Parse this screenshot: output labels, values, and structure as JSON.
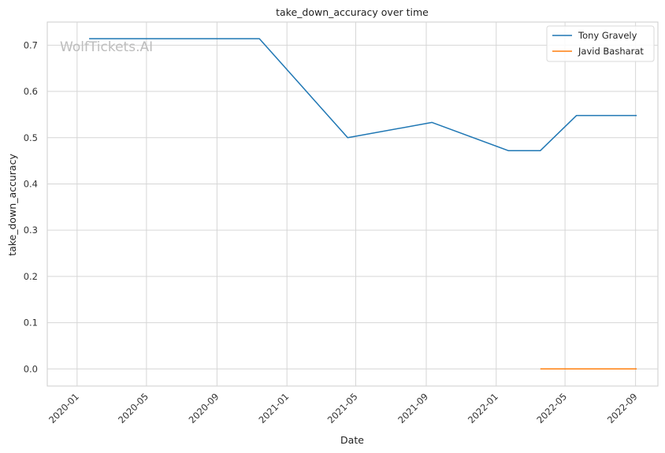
{
  "chart_data": {
    "type": "line",
    "title": "take_down_accuracy over time",
    "xlabel": "Date",
    "ylabel": "take_down_accuracy",
    "watermark": "WolfTickets.AI",
    "x_ticks": [
      "2020-01",
      "2020-05",
      "2020-09",
      "2021-01",
      "2021-05",
      "2021-09",
      "2022-01",
      "2022-05",
      "2022-09"
    ],
    "y_ticks": [
      "0.0",
      "0.1",
      "0.2",
      "0.3",
      "0.4",
      "0.5",
      "0.6",
      "0.7"
    ],
    "xlim": [
      "2019-11-10",
      "2022-10-10"
    ],
    "ylim": [
      -0.037,
      0.75
    ],
    "grid": true,
    "legend_position": "top-right",
    "series": [
      {
        "name": "Tony Gravely",
        "color": "#1f77b4",
        "points": [
          {
            "x": "2020-01-22",
            "y": 0.714
          },
          {
            "x": "2020-11-14",
            "y": 0.714
          },
          {
            "x": "2021-04-17",
            "y": 0.5
          },
          {
            "x": "2021-09-11",
            "y": 0.533
          },
          {
            "x": "2022-01-22",
            "y": 0.472
          },
          {
            "x": "2022-03-19",
            "y": 0.472
          },
          {
            "x": "2022-05-21",
            "y": 0.548
          },
          {
            "x": "2022-09-03",
            "y": 0.548
          }
        ]
      },
      {
        "name": "Javid Basharat",
        "color": "#ff7f0e",
        "points": [
          {
            "x": "2022-03-19",
            "y": 0.0
          },
          {
            "x": "2022-09-03",
            "y": 0.0
          }
        ]
      }
    ]
  }
}
